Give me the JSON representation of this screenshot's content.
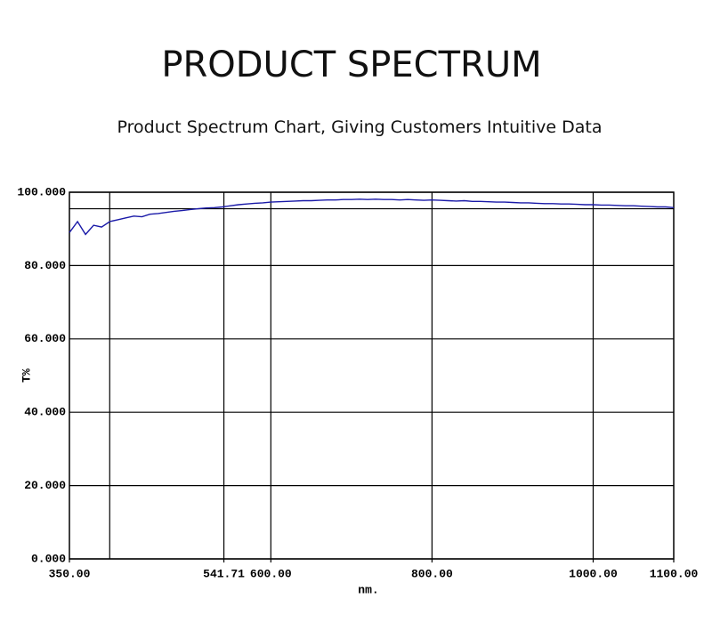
{
  "chart_data": {
    "type": "line",
    "title": "PRODUCT SPECTRUM",
    "subtitle": "Product Spectrum Chart, Giving Customers Intuitive Data",
    "x_label": "nm.",
    "y_label": "T%",
    "x": [
      350,
      360,
      370,
      380,
      390,
      400,
      410,
      420,
      430,
      440,
      450,
      460,
      470,
      480,
      490,
      500,
      510,
      520,
      530,
      540,
      550,
      560,
      570,
      580,
      590,
      600,
      610,
      620,
      630,
      640,
      650,
      660,
      670,
      680,
      690,
      700,
      710,
      720,
      730,
      740,
      750,
      760,
      770,
      780,
      790,
      800,
      810,
      820,
      830,
      840,
      850,
      860,
      870,
      880,
      890,
      900,
      910,
      920,
      930,
      940,
      950,
      960,
      970,
      980,
      990,
      1000,
      1010,
      1020,
      1030,
      1040,
      1050,
      1060,
      1070,
      1080,
      1090,
      1100
    ],
    "values": [
      89,
      92,
      88.5,
      91,
      90.5,
      92,
      92.5,
      93,
      93.5,
      93.3,
      94,
      94.2,
      94.5,
      94.8,
      95,
      95.3,
      95.5,
      95.7,
      95.8,
      96,
      96.3,
      96.6,
      96.8,
      97,
      97.1,
      97.3,
      97.4,
      97.5,
      97.6,
      97.7,
      97.7,
      97.8,
      97.9,
      97.9,
      98,
      98,
      98.1,
      98,
      98.1,
      98,
      98,
      97.9,
      98,
      97.9,
      97.8,
      97.9,
      97.8,
      97.7,
      97.6,
      97.7,
      97.5,
      97.5,
      97.4,
      97.3,
      97.3,
      97.2,
      97.1,
      97.1,
      97,
      96.9,
      96.9,
      96.8,
      96.8,
      96.7,
      96.6,
      96.6,
      96.5,
      96.5,
      96.4,
      96.3,
      96.3,
      96.2,
      96.1,
      96,
      96,
      95.8
    ],
    "color": "#1a1aa8",
    "xlim": [
      350,
      1100
    ],
    "ylim": [
      0,
      100
    ],
    "xticks": [
      {
        "value": 350,
        "label": "350.00"
      },
      541.71,
      {
        "value": 600,
        "label": "600.00"
      },
      {
        "value": 800,
        "label": "800.00"
      },
      {
        "value": 1000,
        "label": "1000.00"
      },
      {
        "value": 1100,
        "label": "1100.00"
      }
    ],
    "yticks": [
      {
        "value": 0,
        "label": "0.000"
      },
      {
        "value": 20,
        "label": "20.000"
      },
      {
        "value": 40,
        "label": "40.000"
      },
      {
        "value": 60,
        "label": "60.000"
      },
      {
        "value": 80,
        "label": "80.000"
      },
      {
        "value": 100,
        "label": "100.000"
      }
    ],
    "xgrid": [
      400,
      541.71,
      600,
      800,
      1000
    ],
    "reference_line": 95.5,
    "grid": true
  }
}
